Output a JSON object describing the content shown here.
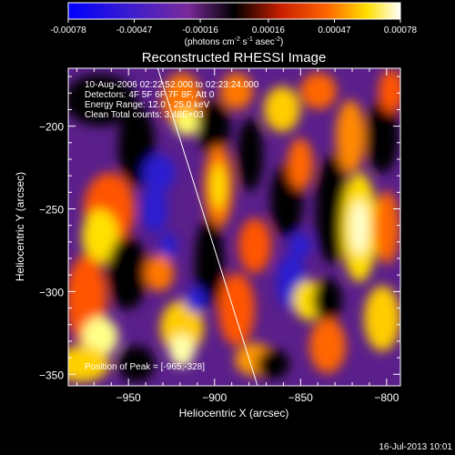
{
  "colorbar": {
    "tick_labels": [
      "-0.00078",
      "-0.00047",
      "-0.00016",
      "0.00016",
      "0.00047",
      "0.00078"
    ],
    "tick_values": [
      -0.00078,
      -0.00047,
      -0.00016,
      0.00016,
      0.00047,
      0.00078
    ],
    "range": [
      -0.00078,
      0.00078
    ],
    "units_prefix": "(photons cm",
    "units_sup1": "-2",
    "units_mid": " s",
    "units_sup2": "-1",
    "units_mid2": " asec",
    "units_sup3": "-2",
    "units_suffix": ")"
  },
  "plot": {
    "title": "Reconstructed RHESSI Image",
    "xlabel": "Heliocentric X (arcsec)",
    "ylabel": "Heliocentric Y (arcsec)",
    "xlim": [
      -985,
      -792
    ],
    "ylim": [
      -357,
      -165
    ],
    "xticks": [
      -950,
      -900,
      -850,
      -800
    ],
    "xtick_labels": [
      "−950",
      "−900",
      "−850",
      "−800"
    ],
    "yticks": [
      -200,
      -250,
      -300,
      -350
    ],
    "ytick_labels": [
      "−200",
      "−250",
      "−300",
      "−350"
    ],
    "limb_line": {
      "x1": -933,
      "y1": -165,
      "x2": -875,
      "y2": -357
    }
  },
  "info": {
    "line1": "10-Aug-2006 02:22:52.000 to 02:23:24.000",
    "line2": "Detectors: 4F 5F 6F 7F 8F, Att 0",
    "line3": "Energy Range: 12.0 - 25.0 keV",
    "line4": "Clean     Total counts: 3.48E+03",
    "peak": "Position of Peak = [-965,-328]"
  },
  "timestamp": "16-Jul-2013 10:01",
  "colors": {
    "background": "#000000",
    "foreground": "#ffffff",
    "colormap": [
      "#0000ff",
      "#3a1cd0",
      "#7a2a9a",
      "#000000",
      "#c81e00",
      "#ff6600",
      "#ffe000",
      "#ffffff"
    ]
  },
  "chart_data": {
    "type": "heatmap",
    "title": "Reconstructed RHESSI Image",
    "xlabel": "Heliocentric X (arcsec)",
    "ylabel": "Heliocentric Y (arcsec)",
    "xlim": [
      -985,
      -792
    ],
    "ylim": [
      -357,
      -165
    ],
    "value_range": [
      -0.00078,
      0.00078
    ],
    "peak_position": [
      -965,
      -328
    ]
  }
}
